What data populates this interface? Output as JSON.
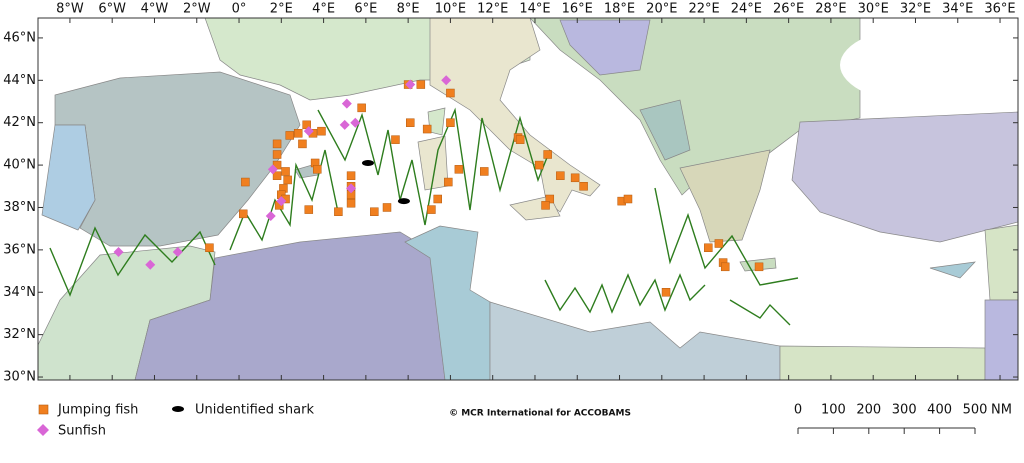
{
  "map": {
    "xlim": [
      -9.51,
      36.85
    ],
    "ylim": [
      29.86,
      46.94
    ],
    "xticks": [
      {
        "value": -8,
        "label": "8°W"
      },
      {
        "value": -6,
        "label": "6°W"
      },
      {
        "value": -4,
        "label": "4°W"
      },
      {
        "value": -2,
        "label": "2°W"
      },
      {
        "value": 0,
        "label": "0°"
      },
      {
        "value": 2,
        "label": "2°E"
      },
      {
        "value": 4,
        "label": "4°E"
      },
      {
        "value": 6,
        "label": "6°E"
      },
      {
        "value": 8,
        "label": "8°E"
      },
      {
        "value": 10,
        "label": "10°E"
      },
      {
        "value": 12,
        "label": "12°E"
      },
      {
        "value": 14,
        "label": "14°E"
      },
      {
        "value": 16,
        "label": "16°E"
      },
      {
        "value": 18,
        "label": "18°E"
      },
      {
        "value": 20,
        "label": "20°E"
      },
      {
        "value": 22,
        "label": "22°E"
      },
      {
        "value": 24,
        "label": "24°E"
      },
      {
        "value": 26,
        "label": "26°E"
      },
      {
        "value": 28,
        "label": "28°E"
      },
      {
        "value": 30,
        "label": "30°E"
      },
      {
        "value": 32,
        "label": "32°E"
      },
      {
        "value": 34,
        "label": "34°E"
      },
      {
        "value": 36,
        "label": "36°E"
      }
    ],
    "yticks": [
      {
        "value": 30,
        "label": "30°N"
      },
      {
        "value": 32,
        "label": "32°N"
      },
      {
        "value": 34,
        "label": "34°N"
      },
      {
        "value": 36,
        "label": "36°N"
      },
      {
        "value": 38,
        "label": "38°N"
      },
      {
        "value": 40,
        "label": "40°N"
      },
      {
        "value": 42,
        "label": "42°N"
      },
      {
        "value": 44,
        "label": "44°N"
      },
      {
        "value": 46,
        "label": "46°N"
      }
    ],
    "series": [
      {
        "name": "Jumping fish",
        "color": "#f07f1f",
        "marker": "square",
        "lon": [
          0.3,
          0.2,
          1.8,
          1.8,
          1.8,
          1.8,
          2.2,
          2.3,
          2.1,
          2.0,
          2.2,
          1.9,
          2.4,
          2.8,
          3.0,
          3.2,
          3.5,
          3.9,
          3.6,
          3.7,
          3.3,
          4.7,
          5.3,
          5.3,
          5.3,
          5.3,
          5.8,
          6.4,
          7.0,
          7.4,
          8.0,
          8.6,
          8.1,
          8.9,
          9.4,
          9.1,
          9.9,
          10.0,
          10.0,
          10.4,
          11.6,
          13.2,
          13.3,
          14.2,
          14.6,
          14.7,
          14.5,
          15.2,
          15.9,
          16.3,
          18.1,
          18.4,
          20.2,
          22.2,
          22.7,
          22.9,
          23.0,
          24.6,
          -1.4
        ],
        "lat": [
          39.2,
          37.7,
          41.0,
          40.5,
          40.0,
          39.5,
          39.7,
          39.3,
          38.9,
          38.6,
          38.4,
          38.1,
          41.4,
          41.5,
          41.0,
          41.9,
          41.5,
          41.6,
          40.1,
          39.8,
          37.9,
          37.8,
          39.5,
          39.0,
          38.6,
          38.2,
          42.7,
          37.8,
          38.0,
          41.2,
          43.8,
          43.8,
          42.0,
          41.7,
          38.4,
          37.9,
          39.2,
          43.4,
          42.0,
          39.8,
          39.7,
          41.3,
          41.2,
          40.0,
          40.5,
          38.4,
          38.1,
          39.5,
          39.4,
          39.0,
          38.3,
          38.4,
          34.0,
          36.1,
          36.3,
          35.4,
          35.2,
          35.2,
          36.1
        ]
      },
      {
        "name": "Sunfish",
        "color": "#d966d6",
        "marker": "diamond",
        "lon": [
          -5.7,
          -4.2,
          -2.9,
          1.6,
          1.5,
          2.0,
          3.3,
          5.1,
          5.5,
          5.0,
          5.3,
          8.1,
          9.8
        ],
        "lat": [
          35.9,
          35.3,
          35.9,
          39.8,
          37.6,
          38.3,
          41.6,
          42.9,
          42.0,
          41.9,
          38.9,
          43.8,
          44.0
        ]
      },
      {
        "name": "Unidentified shark",
        "color": "#000000",
        "marker": "ellipse",
        "lon": [
          6.1,
          7.8
        ],
        "lat": [
          40.1,
          38.3
        ]
      }
    ],
    "credit": "© MCR International for ACCOBAMS",
    "scale": {
      "ticks": [
        0,
        100,
        200,
        300,
        400,
        500
      ],
      "unit": "NM"
    }
  }
}
